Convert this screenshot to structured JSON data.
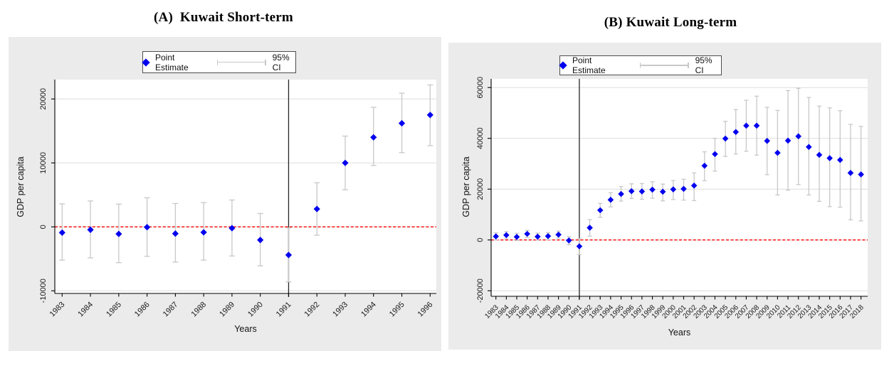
{
  "figure": {
    "background": "#ffffff"
  },
  "colors": {
    "point_color": "#0000ee",
    "ci_color": "#c8c8c8",
    "refline_color": "#ff0000",
    "vline_color": "#262626",
    "panel_bg": "#ebebeb",
    "plot_bg": "#ffffff",
    "grid_color": "#dddddd",
    "axis_color": "#000000",
    "text_color": "#1a1a1a"
  },
  "chart_data": [
    {
      "type": "scatter",
      "title": "(A)  Kuwait Short-term",
      "xlabel": "Years",
      "ylabel": "GDP per capita",
      "legend_point_label": "Point Estimate",
      "legend_ci_label": "95% CI",
      "legend_position": "top-center",
      "grid": true,
      "categories": [
        "1983",
        "1984",
        "1985",
        "1986",
        "1987",
        "1988",
        "1989",
        "1990",
        "1991",
        "1992",
        "1993",
        "1994",
        "1995",
        "1996"
      ],
      "series": [
        {
          "name": "Point Estimate",
          "values": [
            -900,
            -450,
            -1100,
            -50,
            -1050,
            -850,
            -200,
            -2050,
            -4400,
            2800,
            10000,
            14000,
            16200,
            17500
          ]
        },
        {
          "name": "95% CI lower",
          "values": [
            -5200,
            -4850,
            -5600,
            -4600,
            -5500,
            -5200,
            -4550,
            -6100,
            -8600,
            -1300,
            5800,
            9600,
            11600,
            12700
          ]
        },
        {
          "name": "95% CI upper",
          "values": [
            3600,
            4050,
            3550,
            4550,
            3650,
            3800,
            4200,
            2100,
            -150,
            6900,
            14200,
            18700,
            20900,
            22200
          ]
        }
      ],
      "yticks": [
        -10000,
        0,
        10000,
        20000
      ],
      "ylim": [
        -10400,
        23000
      ],
      "hline_value": 0,
      "vline_year": "1991"
    },
    {
      "type": "scatter",
      "title": "(B) Kuwait Long-term",
      "xlabel": "Years",
      "ylabel": "GDP per capita",
      "legend_point_label": "Point Estimate",
      "legend_ci_label": "95% CI",
      "legend_position": "top-center",
      "grid": true,
      "categories": [
        "1983",
        "1984",
        "1985",
        "1986",
        "1987",
        "1988",
        "1989",
        "1990",
        "1991",
        "1992",
        "1993",
        "1994",
        "1995",
        "1996",
        "1997",
        "1998",
        "1999",
        "2000",
        "2001",
        "2002",
        "2003",
        "2004",
        "2005",
        "2006",
        "2007",
        "2008",
        "2009",
        "2010",
        "2011",
        "2012",
        "2013",
        "2014",
        "2015",
        "2016",
        "2017",
        "2018"
      ],
      "series": [
        {
          "name": "Point Estimate",
          "values": [
            1400,
            1900,
            1200,
            2400,
            1300,
            1500,
            2100,
            -200,
            -2500,
            4800,
            11700,
            15800,
            18100,
            19200,
            19100,
            19800,
            19000,
            19900,
            20100,
            21400,
            29200,
            33800,
            39900,
            42500,
            45000,
            45000,
            39000,
            34300,
            39100,
            40800,
            36600,
            33500,
            32200,
            31500,
            26400,
            25800
          ]
        },
        {
          "name": "95% CI lower",
          "values": [
            0,
            500,
            -200,
            1000,
            -100,
            100,
            700,
            -1900,
            -5800,
            1500,
            8900,
            13000,
            15300,
            16300,
            16000,
            16400,
            15400,
            15900,
            15700,
            15500,
            23300,
            27100,
            32900,
            33800,
            34900,
            33400,
            25700,
            17700,
            19600,
            21800,
            17700,
            15200,
            13100,
            12900,
            7900,
            7500
          ]
        },
        {
          "name": "95% CI upper",
          "values": [
            2800,
            3300,
            2600,
            3800,
            2700,
            2900,
            3500,
            1300,
            600,
            8000,
            14400,
            18600,
            21000,
            22100,
            22200,
            22900,
            22000,
            23400,
            23900,
            26400,
            34700,
            40000,
            46700,
            51300,
            55000,
            56600,
            52200,
            51000,
            58800,
            59700,
            56100,
            52700,
            52000,
            50900,
            45500,
            44700
          ]
        }
      ],
      "yticks": [
        -20000,
        0,
        20000,
        40000,
        60000
      ],
      "ylim": [
        -21000,
        63500
      ],
      "hline_value": 0,
      "vline_year": "1991"
    }
  ]
}
